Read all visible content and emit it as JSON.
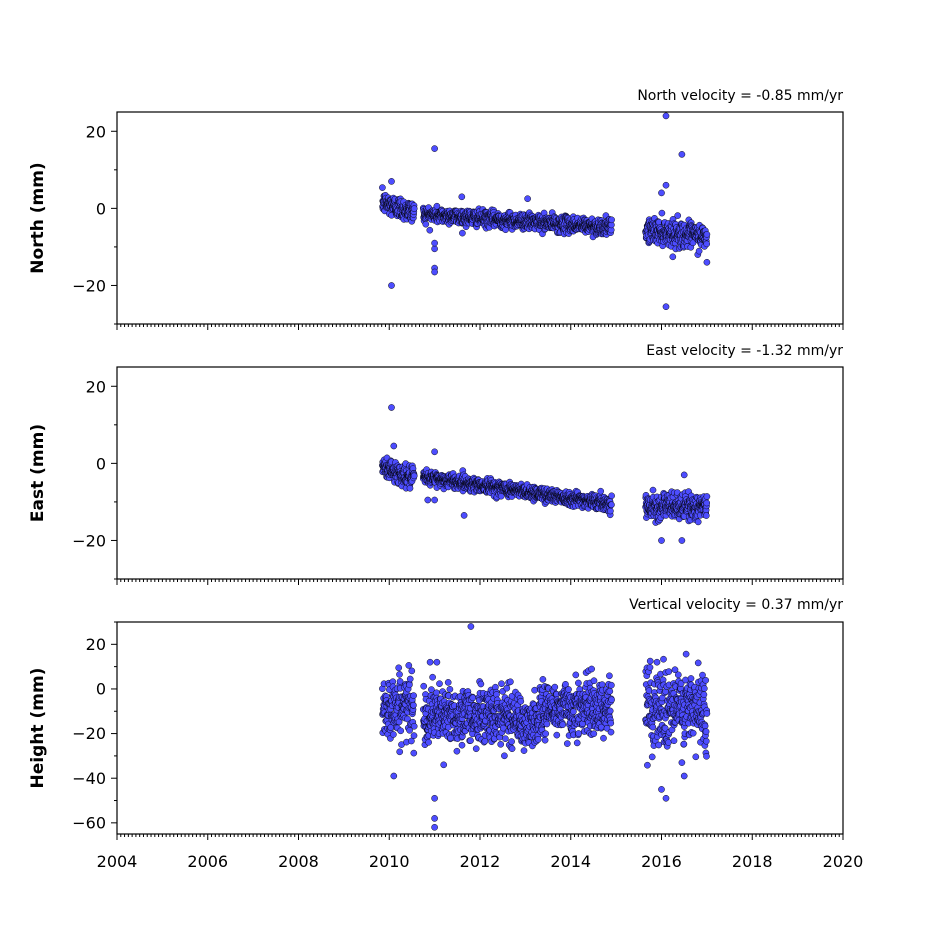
{
  "chart_data": [
    {
      "type": "scatter",
      "title": "North velocity = -0.85 mm/yr",
      "ylabel": "North (mm)",
      "xlim": [
        2004,
        2020
      ],
      "ylim": [
        -30,
        25
      ],
      "xticks": [
        2004,
        2006,
        2008,
        2010,
        2012,
        2014,
        2016,
        2018,
        2020
      ],
      "yticks": [
        -20,
        0,
        20
      ],
      "ytick_labels": [
        "−20",
        "0",
        "20"
      ],
      "marker_color": "#4d4dff",
      "segments": [
        {
          "x_start": 2009.85,
          "x_end": 2010.55,
          "y_start": 1.5,
          "y_end": -1.0,
          "noise": 1.4
        },
        {
          "x_start": 2010.75,
          "x_end": 2014.9,
          "y_start": -1.5,
          "y_end": -5.0,
          "noise": 1.0
        },
        {
          "x_start": 2015.65,
          "x_end": 2017.0,
          "y_start": -5.5,
          "y_end": -7.5,
          "noise": 1.6
        }
      ],
      "outliers": [
        {
          "x": 2010.05,
          "y": -20
        },
        {
          "x": 2010.05,
          "y": 7
        },
        {
          "x": 2011.0,
          "y": 15.5
        },
        {
          "x": 2011.0,
          "y": -15.5
        },
        {
          "x": 2011.0,
          "y": -16.5
        },
        {
          "x": 2011.0,
          "y": -10.5
        },
        {
          "x": 2011.0,
          "y": -9
        },
        {
          "x": 2016.1,
          "y": 24
        },
        {
          "x": 2016.1,
          "y": -25.5
        },
        {
          "x": 2016.45,
          "y": 14
        },
        {
          "x": 2016.1,
          "y": 6
        },
        {
          "x": 2016.0,
          "y": 4
        },
        {
          "x": 2017.0,
          "y": -14
        },
        {
          "x": 2013.05,
          "y": 2.5
        },
        {
          "x": 2011.6,
          "y": 3
        }
      ]
    },
    {
      "type": "scatter",
      "title": "East velocity = -1.32 mm/yr",
      "ylabel": "East (mm)",
      "xlim": [
        2004,
        2020
      ],
      "ylim": [
        -30,
        25
      ],
      "xticks": [
        2004,
        2006,
        2008,
        2010,
        2012,
        2014,
        2016,
        2018,
        2020
      ],
      "yticks": [
        -20,
        0,
        20
      ],
      "ytick_labels": [
        "−20",
        "0",
        "20"
      ],
      "marker_color": "#4d4dff",
      "segments": [
        {
          "x_start": 2009.85,
          "x_end": 2010.55,
          "y_start": -1.0,
          "y_end": -4.0,
          "noise": 1.3
        },
        {
          "x_start": 2010.75,
          "x_end": 2014.9,
          "y_start": -3.5,
          "y_end": -10.5,
          "noise": 0.9
        },
        {
          "x_start": 2015.65,
          "x_end": 2017.0,
          "y_start": -11.0,
          "y_end": -11.5,
          "noise": 1.6
        }
      ],
      "outliers": [
        {
          "x": 2010.05,
          "y": 14.5
        },
        {
          "x": 2010.1,
          "y": 4.5
        },
        {
          "x": 2011.0,
          "y": 3
        },
        {
          "x": 2011.65,
          "y": -13.5
        },
        {
          "x": 2016.0,
          "y": -20
        },
        {
          "x": 2016.45,
          "y": -20
        },
        {
          "x": 2016.5,
          "y": -3
        },
        {
          "x": 2011.0,
          "y": -9.5
        },
        {
          "x": 2010.85,
          "y": -9.5
        }
      ]
    },
    {
      "type": "scatter",
      "title": "Vertical velocity = 0.37 mm/yr",
      "ylabel": "Height (mm)",
      "xlim": [
        2004,
        2020
      ],
      "ylim": [
        -65,
        30
      ],
      "xticks": [
        2004,
        2006,
        2008,
        2010,
        2012,
        2014,
        2016,
        2018,
        2020
      ],
      "xtick_labels": [
        "2004",
        "2006",
        "2008",
        "2010",
        "2012",
        "2014",
        "2016",
        "2018",
        "2020"
      ],
      "yticks": [
        -60,
        -40,
        -20,
        0,
        20
      ],
      "ytick_labels": [
        "−60",
        "−40",
        "−20",
        "0",
        "20"
      ],
      "marker_color": "#4d4dff",
      "segments": [
        {
          "x_start": 2009.85,
          "x_end": 2010.55,
          "y_start": -8,
          "y_end": -8,
          "noise": 7
        },
        {
          "x_start": 2010.75,
          "x_end": 2012.9,
          "y_start": -12,
          "y_end": -12,
          "noise": 6
        },
        {
          "x_start": 2012.9,
          "x_end": 2013.3,
          "y_start": -18,
          "y_end": -14,
          "noise": 5
        },
        {
          "x_start": 2013.3,
          "x_end": 2014.9,
          "y_start": -9,
          "y_end": -8,
          "noise": 6
        },
        {
          "x_start": 2015.65,
          "x_end": 2017.0,
          "y_start": -8,
          "y_end": -10,
          "noise": 9
        }
      ],
      "outliers": [
        {
          "x": 2010.1,
          "y": -39
        },
        {
          "x": 2011.0,
          "y": -49
        },
        {
          "x": 2011.0,
          "y": -62
        },
        {
          "x": 2011.0,
          "y": -58
        },
        {
          "x": 2011.8,
          "y": 28
        },
        {
          "x": 2010.9,
          "y": 12
        },
        {
          "x": 2011.05,
          "y": 12
        },
        {
          "x": 2016.0,
          "y": -45
        },
        {
          "x": 2016.1,
          "y": -49
        },
        {
          "x": 2016.5,
          "y": -39
        },
        {
          "x": 2015.75,
          "y": 12.5
        },
        {
          "x": 2015.9,
          "y": 12
        },
        {
          "x": 2011.2,
          "y": -34
        },
        {
          "x": 2011.35,
          "y": -22
        }
      ]
    }
  ]
}
